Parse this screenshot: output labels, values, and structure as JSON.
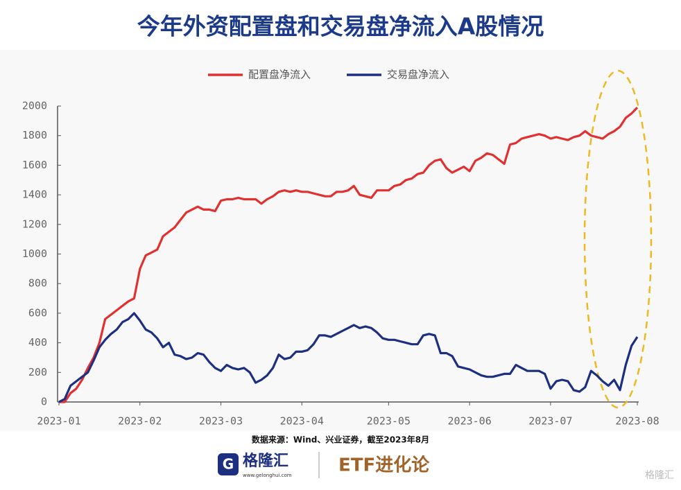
{
  "chart_data": {
    "type": "line",
    "title": "今年外资配置盘和交易盘净流入A股情况",
    "categories": [
      "2023-01",
      null,
      null,
      null,
      null,
      null,
      null,
      null,
      null,
      null,
      null,
      null,
      null,
      null,
      "2023-02",
      null,
      null,
      null,
      null,
      null,
      null,
      null,
      null,
      null,
      null,
      null,
      null,
      null,
      "2023-03",
      null,
      null,
      null,
      null,
      null,
      null,
      null,
      null,
      null,
      null,
      null,
      null,
      null,
      "2023-04",
      null,
      null,
      null,
      null,
      null,
      null,
      null,
      null,
      null,
      null,
      null,
      null,
      null,
      null,
      "2023-05",
      null,
      null,
      null,
      null,
      null,
      null,
      null,
      null,
      null,
      null,
      null,
      null,
      null,
      "2023-06",
      null,
      null,
      null,
      null,
      null,
      null,
      null,
      null,
      null,
      null,
      null,
      null,
      null,
      "2023-07",
      null,
      null,
      null,
      null,
      null,
      null,
      null,
      null,
      null,
      null,
      null,
      null,
      null,
      null,
      "2023-08"
    ],
    "series": [
      {
        "name": "配置盘净流入",
        "color": "#e03030",
        "values": [
          0,
          0,
          60,
          90,
          150,
          230,
          300,
          400,
          560,
          590,
          620,
          650,
          680,
          700,
          900,
          990,
          1010,
          1030,
          1120,
          1150,
          1180,
          1230,
          1280,
          1300,
          1320,
          1300,
          1300,
          1290,
          1360,
          1370,
          1370,
          1380,
          1370,
          1370,
          1370,
          1340,
          1370,
          1390,
          1420,
          1430,
          1420,
          1430,
          1420,
          1420,
          1410,
          1400,
          1390,
          1390,
          1420,
          1420,
          1430,
          1460,
          1400,
          1390,
          1380,
          1430,
          1430,
          1430,
          1460,
          1470,
          1500,
          1510,
          1540,
          1550,
          1600,
          1630,
          1640,
          1580,
          1550,
          1570,
          1590,
          1560,
          1630,
          1650,
          1680,
          1670,
          1640,
          1610,
          1740,
          1750,
          1780,
          1790,
          1800,
          1810,
          1800,
          1780,
          1790,
          1780,
          1770,
          1790,
          1800,
          1830,
          1800,
          1790,
          1780,
          1810,
          1830,
          1860,
          1920,
          1950,
          1990
        ]
      },
      {
        "name": "交易盘净流入",
        "color": "#1c2f80",
        "values": [
          0,
          20,
          110,
          140,
          170,
          200,
          280,
          370,
          420,
          460,
          490,
          540,
          560,
          600,
          550,
          490,
          470,
          430,
          370,
          400,
          320,
          310,
          290,
          300,
          330,
          320,
          270,
          230,
          210,
          250,
          230,
          220,
          230,
          200,
          130,
          150,
          180,
          230,
          320,
          290,
          300,
          340,
          340,
          350,
          390,
          450,
          450,
          440,
          460,
          480,
          500,
          520,
          500,
          510,
          500,
          470,
          430,
          420,
          420,
          410,
          400,
          390,
          390,
          450,
          460,
          450,
          330,
          330,
          310,
          240,
          230,
          220,
          200,
          180,
          170,
          170,
          180,
          190,
          190,
          250,
          230,
          210,
          210,
          210,
          190,
          90,
          140,
          150,
          140,
          80,
          70,
          100,
          210,
          180,
          140,
          110,
          150,
          80,
          250,
          380,
          440
        ]
      }
    ],
    "ylim": [
      0,
      2000
    ],
    "yticks": [
      0,
      200,
      400,
      600,
      800,
      1000,
      1200,
      1400,
      1600,
      1800,
      2000
    ],
    "legend": "top",
    "grid": false,
    "source": "数据来源：Wind、兴业证券，截至2023年8月"
  },
  "footer": {
    "logo": "格隆汇",
    "site": "www.gelonghui.com",
    "brand": "ETF进化论",
    "watermark": "格隆汇"
  }
}
